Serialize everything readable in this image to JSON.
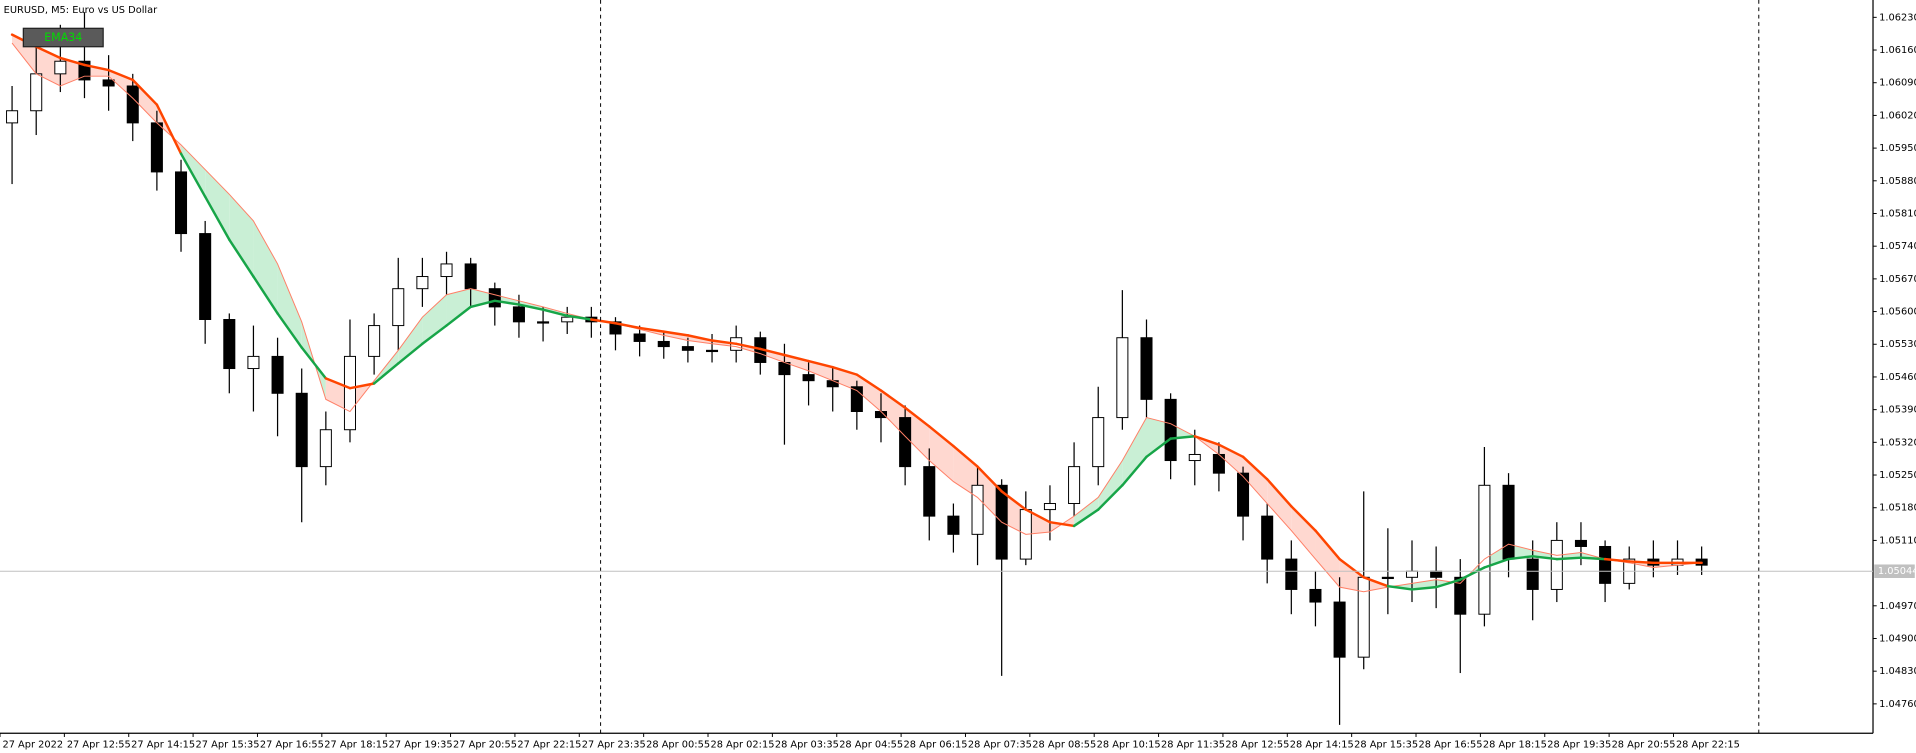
{
  "chart_data": {
    "type": "candlestick",
    "title": "EURUSD, M5:  Euro vs US Dollar",
    "indicator_label": "EMA34",
    "x": [
      3,
      9,
      15,
      21,
      27,
      33,
      39,
      45,
      51,
      57,
      63,
      69,
      75,
      81,
      87,
      93,
      99,
      105,
      111,
      117,
      123,
      129,
      135,
      141,
      147,
      153,
      159,
      165,
      171,
      177,
      183,
      189,
      195,
      201,
      207,
      213,
      219,
      225,
      231,
      237,
      243,
      249,
      255,
      261,
      267,
      273,
      279,
      285,
      291,
      297,
      303,
      309,
      315,
      321,
      327,
      333,
      339,
      345,
      351,
      357,
      363,
      369,
      375,
      381,
      387,
      393,
      399,
      405,
      411,
      417,
      423
    ],
    "open": [
      1.06004,
      1.0603,
      1.06109,
      1.06136,
      1.06096,
      1.06083,
      1.06004,
      1.05899,
      1.05767,
      1.05583,
      1.05478,
      1.05504,
      1.05425,
      1.05268,
      1.05347,
      1.05504,
      1.0557,
      1.05649,
      1.05675,
      1.05702,
      1.05649,
      1.0561,
      1.05578,
      1.05578,
      1.05588,
      1.05578,
      1.05552,
      1.05536,
      1.05525,
      1.05517,
      1.05517,
      1.05544,
      1.05491,
      1.05465,
      1.05452,
      1.05439,
      1.05386,
      1.05373,
      1.05268,
      1.05162,
      1.05123,
      1.05228,
      1.0507,
      1.05176,
      1.05189,
      1.05268,
      1.05373,
      1.05544,
      1.05412,
      1.05281,
      1.05294,
      1.05254,
      1.05162,
      1.0507,
      1.05005,
      1.04978,
      1.0486,
      1.05031,
      1.05031,
      1.05044,
      1.05031,
      1.04952,
      1.05228,
      1.0507,
      1.05005,
      1.0511,
      1.05097,
      1.05018,
      1.0507,
      1.05057,
      1.0507
    ],
    "high": [
      1.06083,
      1.06188,
      1.06214,
      1.06241,
      1.06149,
      1.06109,
      1.0603,
      1.05925,
      1.05794,
      1.05596,
      1.0557,
      1.05544,
      1.05478,
      1.05386,
      1.05583,
      1.05596,
      1.05715,
      1.05715,
      1.05728,
      1.05715,
      1.05662,
      1.05636,
      1.0561,
      1.0561,
      1.0561,
      1.05588,
      1.0557,
      1.05557,
      1.05544,
      1.05552,
      1.0557,
      1.05557,
      1.05531,
      1.05491,
      1.05483,
      1.05452,
      1.05425,
      1.05399,
      1.05307,
      1.05189,
      1.05268,
      1.05241,
      1.05215,
      1.05228,
      1.0532,
      1.05439,
      1.05646,
      1.05583,
      1.05425,
      1.05347,
      1.0532,
      1.05268,
      1.05189,
      1.0511,
      1.05044,
      1.05031,
      1.05215,
      1.05136,
      1.0511,
      1.05097,
      1.0507,
      1.0531,
      1.05254,
      1.0511,
      1.05149,
      1.05149,
      1.0511,
      1.05097,
      1.0511,
      1.0511,
      1.05097
    ],
    "low": [
      1.05873,
      1.05978,
      1.0607,
      1.06057,
      1.0603,
      1.05965,
      1.05859,
      1.05728,
      1.05531,
      1.05425,
      1.05386,
      1.05333,
      1.05149,
      1.05228,
      1.0532,
      1.05465,
      1.05517,
      1.0561,
      1.05636,
      1.0561,
      1.0557,
      1.05544,
      1.05536,
      1.05552,
      1.05544,
      1.05517,
      1.05504,
      1.05499,
      1.05491,
      1.05491,
      1.05491,
      1.05465,
      1.05315,
      1.05399,
      1.05386,
      1.05347,
      1.0532,
      1.05228,
      1.0511,
      1.05084,
      1.05057,
      1.0482,
      1.05057,
      1.0511,
      1.05162,
      1.05228,
      1.05347,
      1.05373,
      1.05241,
      1.05228,
      1.05215,
      1.0511,
      1.05018,
      1.04952,
      1.04926,
      1.04715,
      1.04834,
      1.04952,
      1.04978,
      1.04965,
      1.04826,
      1.04926,
      1.05031,
      1.04939,
      1.04978,
      1.05057,
      1.04978,
      1.05005,
      1.05031,
      1.05036,
      1.05036
    ],
    "close": [
      1.0603,
      1.06109,
      1.06136,
      1.06096,
      1.06083,
      1.06004,
      1.05899,
      1.05767,
      1.05583,
      1.05478,
      1.05504,
      1.05425,
      1.05268,
      1.05347,
      1.05504,
      1.0557,
      1.05649,
      1.05675,
      1.05702,
      1.05649,
      1.0561,
      1.05578,
      1.05578,
      1.05588,
      1.05578,
      1.05552,
      1.05536,
      1.05525,
      1.05517,
      1.05517,
      1.05544,
      1.05491,
      1.05465,
      1.05452,
      1.05439,
      1.05386,
      1.05373,
      1.05268,
      1.05162,
      1.05123,
      1.05228,
      1.0507,
      1.05176,
      1.05189,
      1.05268,
      1.05373,
      1.05544,
      1.05412,
      1.05281,
      1.05294,
      1.05254,
      1.05162,
      1.0507,
      1.05005,
      1.04978,
      1.0486,
      1.05031,
      1.05031,
      1.05044,
      1.05031,
      1.04952,
      1.05228,
      1.0507,
      1.05005,
      1.0511,
      1.05097,
      1.05018,
      1.0507,
      1.05057,
      1.0507,
      1.05057
    ],
    "series": [
      {
        "color": "#ff4500",
        "up_color": "#17a548",
        "values": [
          1.06193,
          1.06167,
          1.06143,
          1.06128,
          1.06117,
          1.06096,
          1.06043,
          1.05938,
          1.05846,
          1.05754,
          1.05675,
          1.05596,
          1.05523,
          1.05457,
          1.05436,
          1.05446,
          1.05489,
          1.05531,
          1.0557,
          1.0561,
          1.05623,
          1.05615,
          1.05604,
          1.05591,
          1.05583,
          1.05575,
          1.05565,
          1.05557,
          1.05549,
          1.05538,
          1.05531,
          1.0552,
          1.05507,
          1.05494,
          1.05481,
          1.05465,
          1.05431,
          1.05394,
          1.05354,
          1.05312,
          1.05268,
          1.05215,
          1.05176,
          1.05149,
          1.05141,
          1.05176,
          1.05228,
          1.05289,
          1.05328,
          1.05333,
          1.05315,
          1.05289,
          1.05241,
          1.05183,
          1.05131,
          1.0507,
          1.05031,
          1.05012,
          1.05005,
          1.0501,
          1.05026,
          1.05052,
          1.0507,
          1.05076,
          1.0507,
          1.05073,
          1.0507,
          1.05065,
          1.05062,
          1.05062,
          1.05062
        ]
      },
      {
        "color": "#ff7f66",
        "values": [
          1.06175,
          1.06109,
          1.06083,
          1.06104,
          1.06104,
          1.06057,
          1.06004,
          1.05957,
          1.05904,
          1.05851,
          1.05794,
          1.05702,
          1.05578,
          1.05412,
          1.05386,
          1.05452,
          1.05517,
          1.05588,
          1.05636,
          1.05649,
          1.05636,
          1.05623,
          1.0561,
          1.05596,
          1.05583,
          1.05575,
          1.05562,
          1.05549,
          1.05538,
          1.05531,
          1.05525,
          1.0551,
          1.05491,
          1.05473,
          1.05452,
          1.05431,
          1.05386,
          1.05333,
          1.05281,
          1.05236,
          1.05202,
          1.05149,
          1.05123,
          1.05128,
          1.05162,
          1.05202,
          1.05281,
          1.05373,
          1.0536,
          1.05333,
          1.05294,
          1.05247,
          1.05189,
          1.05131,
          1.0507,
          1.0501,
          1.05,
          1.0501,
          1.05018,
          1.05026,
          1.05018,
          1.0507,
          1.05102,
          1.05089,
          1.05078,
          1.05084,
          1.0507,
          1.05062,
          1.05052,
          1.05057,
          1.05062
        ]
      }
    ],
    "fill_down": "#ffd8d0",
    "fill_up": "#c9efd5",
    "bull_color": "#ffffff",
    "bear_color": "#000000",
    "current_price": {
      "value": 1.05044,
      "label": "1.05044"
    },
    "xlim": [
      0,
      465.6
    ],
    "xticks": [
      {
        "value": 0,
        "label": "27 Apr 2022"
      },
      {
        "value": 16,
        "label": "27 Apr 12:55"
      },
      {
        "value": 32,
        "label": "27 Apr 14:15"
      },
      {
        "value": 48,
        "label": "27 Apr 15:35"
      },
      {
        "value": 64,
        "label": "27 Apr 16:55"
      },
      {
        "value": 80,
        "label": "27 Apr 18:15"
      },
      {
        "value": 96,
        "label": "27 Apr 19:35"
      },
      {
        "value": 112,
        "label": "27 Apr 20:55"
      },
      {
        "value": 128,
        "label": "27 Apr 22:15"
      },
      {
        "value": 144,
        "label": "27 Apr 23:35"
      },
      {
        "value": 160,
        "label": "28 Apr 00:55"
      },
      {
        "value": 176,
        "label": "28 Apr 02:15"
      },
      {
        "value": 192,
        "label": "28 Apr 03:35"
      },
      {
        "value": 208,
        "label": "28 Apr 04:55"
      },
      {
        "value": 224,
        "label": "28 Apr 06:15"
      },
      {
        "value": 240,
        "label": "28 Apr 07:35"
      },
      {
        "value": 256,
        "label": "28 Apr 08:55"
      },
      {
        "value": 272,
        "label": "28 Apr 10:15"
      },
      {
        "value": 288,
        "label": "28 Apr 11:35"
      },
      {
        "value": 304,
        "label": "28 Apr 12:55"
      },
      {
        "value": 320,
        "label": "28 Apr 14:15"
      },
      {
        "value": 336,
        "label": "28 Apr 15:35"
      },
      {
        "value": 352,
        "label": "28 Apr 16:55"
      },
      {
        "value": 368,
        "label": "28 Apr 18:15"
      },
      {
        "value": 384,
        "label": "28 Apr 19:35"
      },
      {
        "value": 400,
        "label": "28 Apr 20:55"
      },
      {
        "value": 416,
        "label": "28 Apr 22:15"
      }
    ],
    "ylim": [
      1.04697,
      1.06267
    ],
    "yticks": [
      {
        "value": 1.0623,
        "label": "1.06230"
      },
      {
        "value": 1.0616,
        "label": "1.06160"
      },
      {
        "value": 1.0609,
        "label": "1.06090"
      },
      {
        "value": 1.0602,
        "label": "1.06020"
      },
      {
        "value": 1.0595,
        "label": "1.05950"
      },
      {
        "value": 1.0588,
        "label": "1.05880"
      },
      {
        "value": 1.0581,
        "label": "1.05810"
      },
      {
        "value": 1.0574,
        "label": "1.05740"
      },
      {
        "value": 1.0567,
        "label": "1.05670"
      },
      {
        "value": 1.056,
        "label": "1.05600"
      },
      {
        "value": 1.0553,
        "label": "1.05530"
      },
      {
        "value": 1.0546,
        "label": "1.05460"
      },
      {
        "value": 1.0539,
        "label": "1.05390"
      },
      {
        "value": 1.0532,
        "label": "1.05320"
      },
      {
        "value": 1.0525,
        "label": "1.05250"
      },
      {
        "value": 1.0518,
        "label": "1.05180"
      },
      {
        "value": 1.0511,
        "label": "1.05110"
      },
      {
        "value": 1.0497,
        "label": "1.04970"
      },
      {
        "value": 1.049,
        "label": "1.04900"
      },
      {
        "value": 1.0483,
        "label": "1.04830"
      },
      {
        "value": 1.0476,
        "label": "1.04760"
      }
    ],
    "grid": false
  }
}
